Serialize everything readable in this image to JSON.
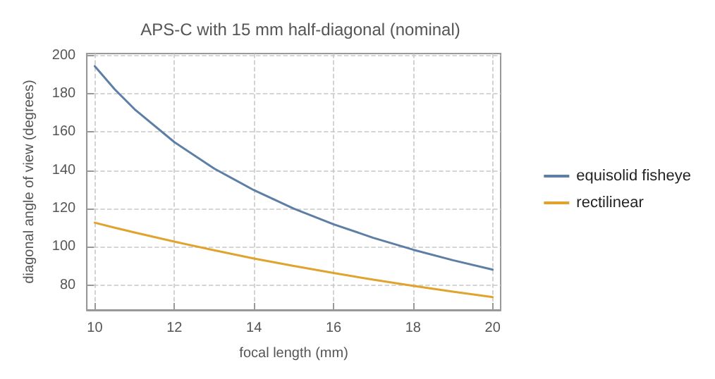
{
  "chart_data": {
    "type": "line",
    "title": "APS-C with 15 mm half-diagonal (nominal)",
    "xlabel": "focal length (mm)",
    "ylabel": "diagonal angle of view (degrees)",
    "x": [
      10,
      10.5,
      11,
      12,
      13,
      14,
      15,
      16,
      17,
      18,
      19,
      20
    ],
    "series": [
      {
        "name": "equisolid fisheye",
        "color": "#5d7fa6",
        "values": [
          194.4,
          182.3,
          171.9,
          154.7,
          140.9,
          129.6,
          120,
          111.8,
          104.7,
          98.5,
          93,
          88.1
        ]
      },
      {
        "name": "rectilinear",
        "color": "#e0a32e",
        "values": [
          112.6,
          110,
          107.5,
          102.7,
          98.2,
          93.9,
          90,
          86.3,
          82.8,
          79.6,
          76.6,
          73.7
        ]
      }
    ],
    "xlim": [
      9.8,
      20.2
    ],
    "xticks": [
      10,
      12,
      14,
      16,
      18,
      20
    ],
    "ylim": [
      67,
      201
    ],
    "yticks": [
      80,
      100,
      120,
      140,
      160,
      180,
      200
    ],
    "grid": true,
    "legend": "right",
    "marker": "none",
    "line_style": "solid"
  }
}
